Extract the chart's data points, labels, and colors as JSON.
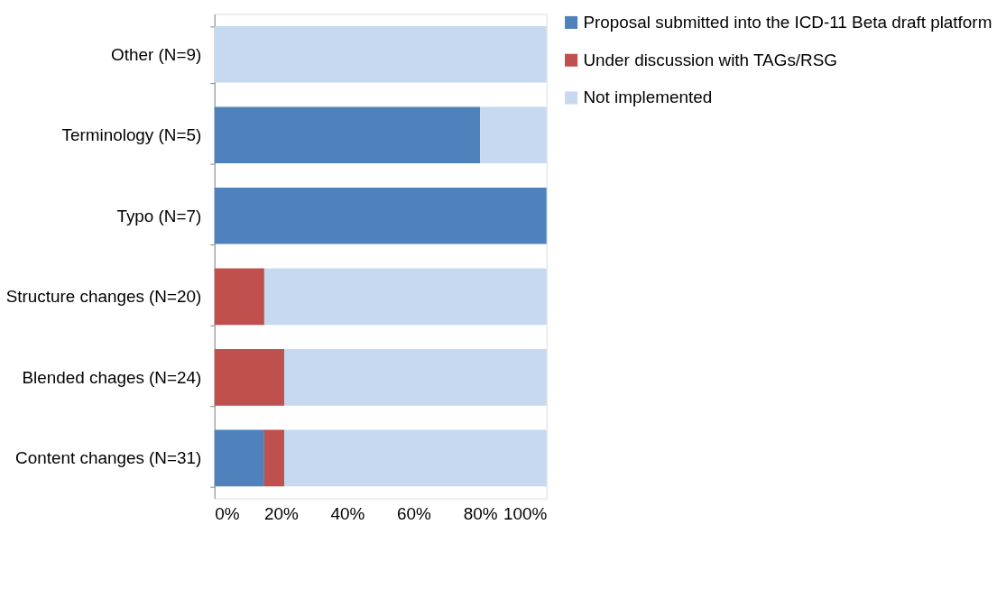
{
  "chart_data": {
    "type": "bar",
    "orientation": "horizontal",
    "stacked": true,
    "categories": [
      "Other (N=9)",
      "Terminology (N=5)",
      "Typo (N=7)",
      "Structure changes (N=20)",
      "Blended chages (N=24)",
      "Content changes (N=31)"
    ],
    "series": [
      {
        "name": "Proposal submitted into the ICD-11 Beta draft platform",
        "color": "#4f81bd",
        "values": [
          0,
          80,
          100,
          0,
          0,
          15
        ]
      },
      {
        "name": "Under discussion with TAGs/RSG",
        "color": "#c0504d",
        "values": [
          0,
          0,
          0,
          15,
          21,
          6
        ]
      },
      {
        "name": "Not implemented",
        "color": "#c6d9f1",
        "values": [
          100,
          20,
          0,
          85,
          79,
          79
        ]
      }
    ],
    "xlim": [
      0,
      100
    ],
    "xticks": [
      {
        "value": 0,
        "label": "0%"
      },
      {
        "value": 20,
        "label": "20%"
      },
      {
        "value": 40,
        "label": "40%"
      },
      {
        "value": 60,
        "label": "60%"
      },
      {
        "value": 80,
        "label": "80%"
      },
      {
        "value": 100,
        "label": "100%"
      }
    ],
    "grid": false,
    "legend": "right"
  }
}
